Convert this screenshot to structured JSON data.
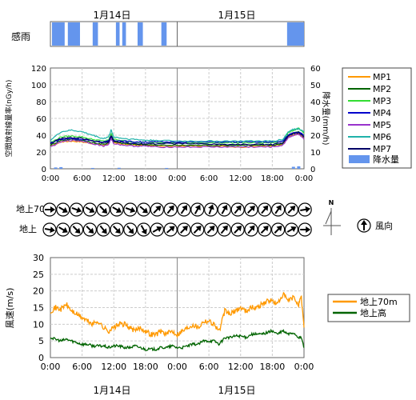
{
  "dates": [
    "1月14日",
    "1月15日"
  ],
  "rain_panel": {
    "label": "感雨"
  },
  "rad_chart": {
    "ylabel": "空間放射線量率(nGy/h)",
    "y2label": "降水量(mm/h)",
    "yticks": [
      "0",
      "20",
      "40",
      "60",
      "80",
      "100",
      "120"
    ],
    "y2ticks": [
      "0",
      "10",
      "20",
      "30",
      "40",
      "50",
      "60"
    ],
    "xticks": [
      "0:00",
      "6:00",
      "12:00",
      "18:00",
      "0:00",
      "6:00",
      "12:00",
      "18:00",
      "0:00"
    ]
  },
  "legend_rad": {
    "items": [
      {
        "name": "MP1",
        "color": "#ff9900"
      },
      {
        "name": "MP2",
        "color": "#006400"
      },
      {
        "name": "MP3",
        "color": "#33dd33"
      },
      {
        "name": "MP4",
        "color": "#0000cc"
      },
      {
        "name": "MP5",
        "color": "#9933cc"
      },
      {
        "name": "MP6",
        "color": "#20b2aa"
      },
      {
        "name": "MP7",
        "color": "#000066"
      }
    ],
    "rain_name": "降水量",
    "rain_color": "#6495ed"
  },
  "wind_dir": {
    "row1_label": "地上70m",
    "row2_label": "地上",
    "compass_letter": "N",
    "legend_label": "風向",
    "row1_angles": [
      90,
      120,
      110,
      120,
      135,
      120,
      110,
      130,
      45,
      40,
      35,
      30,
      20,
      30,
      40,
      45,
      40,
      35,
      45,
      80
    ],
    "row2_angles": [
      100,
      120,
      135,
      135,
      140,
      135,
      140,
      150,
      60,
      50,
      45,
      45,
      45,
      40,
      45,
      40,
      45,
      45,
      60,
      90
    ]
  },
  "wind_chart": {
    "ylabel": "風速(m/s)",
    "yticks": [
      "0",
      "5",
      "10",
      "15",
      "20",
      "25",
      "30"
    ],
    "xticks": [
      "0:00",
      "6:00",
      "12:00",
      "18:00",
      "0:00",
      "6:00",
      "12:00",
      "18:00",
      "0:00"
    ],
    "legend": [
      {
        "name": "地上70m",
        "color": "#ff9900"
      },
      {
        "name": "地上高",
        "color": "#006400"
      }
    ]
  },
  "chart_data": [
    {
      "type": "bar",
      "title": "感雨",
      "x_unit": "hour",
      "rain_sensed_intervals_hours": [
        [
          0.3,
          2.7
        ],
        [
          3.3,
          5.6
        ],
        [
          8.0,
          9.0
        ],
        [
          12.4,
          13.1
        ],
        [
          13.6,
          14.3
        ],
        [
          16.5,
          17.5
        ],
        [
          21.0,
          22.0
        ],
        [
          44.8,
          48.0
        ]
      ]
    },
    {
      "type": "line",
      "xlim": [
        0,
        48
      ],
      "ylim": [
        0,
        120
      ],
      "y2lim": [
        0,
        60
      ],
      "grid": true,
      "legend": "right",
      "series": [
        {
          "name": "MP1",
          "x": [
            0,
            2,
            4,
            6,
            8,
            10,
            11,
            11.5,
            12,
            14,
            16,
            18,
            20,
            24,
            28,
            32,
            36,
            40,
            42,
            44,
            45,
            46,
            47,
            48
          ],
          "y": [
            27,
            32,
            33,
            32,
            30,
            28,
            30,
            37,
            31,
            29,
            28,
            28,
            27,
            27,
            27,
            27,
            26,
            27,
            27,
            29,
            38,
            40,
            42,
            36
          ]
        },
        {
          "name": "MP2",
          "x": [
            0,
            2,
            4,
            6,
            8,
            10,
            11,
            11.5,
            12,
            14,
            16,
            18,
            20,
            24,
            28,
            32,
            36,
            40,
            42,
            44,
            45,
            46,
            47,
            48
          ],
          "y": [
            28,
            34,
            35,
            34,
            31,
            29,
            31,
            38,
            32,
            30,
            29,
            29,
            28,
            28,
            28,
            28,
            28,
            28,
            28,
            30,
            40,
            42,
            44,
            38
          ]
        },
        {
          "name": "MP3",
          "x": [
            0,
            2,
            4,
            6,
            8,
            10,
            11,
            11.5,
            12,
            14,
            16,
            18,
            20,
            24,
            28,
            32,
            36,
            40,
            42,
            44,
            45,
            46,
            47,
            48
          ],
          "y": [
            31,
            38,
            39,
            38,
            35,
            33,
            34,
            42,
            35,
            33,
            32,
            32,
            31,
            31,
            31,
            31,
            31,
            31,
            31,
            33,
            43,
            46,
            48,
            42
          ]
        },
        {
          "name": "MP4",
          "x": [
            0,
            2,
            4,
            6,
            8,
            10,
            11,
            11.5,
            12,
            14,
            16,
            18,
            20,
            24,
            28,
            32,
            36,
            40,
            42,
            44,
            45,
            46,
            47,
            48
          ],
          "y": [
            31,
            35,
            36,
            35,
            33,
            32,
            33,
            39,
            34,
            33,
            32,
            32,
            32,
            32,
            32,
            32,
            32,
            32,
            32,
            33,
            40,
            43,
            44,
            40
          ]
        },
        {
          "name": "MP5",
          "x": [
            0,
            2,
            4,
            6,
            8,
            10,
            11,
            11.5,
            12,
            14,
            16,
            18,
            20,
            24,
            28,
            32,
            36,
            40,
            42,
            44,
            45,
            46,
            47,
            48
          ],
          "y": [
            26,
            32,
            34,
            33,
            30,
            27,
            29,
            36,
            30,
            28,
            27,
            27,
            26,
            26,
            26,
            26,
            26,
            26,
            26,
            28,
            37,
            40,
            41,
            35
          ]
        },
        {
          "name": "MP6",
          "x": [
            0,
            2,
            4,
            6,
            8,
            10,
            11,
            11.5,
            12,
            14,
            16,
            18,
            20,
            24,
            28,
            32,
            36,
            40,
            42,
            44,
            45,
            46,
            47,
            48
          ],
          "y": [
            34,
            44,
            46,
            44,
            40,
            36,
            38,
            46,
            38,
            36,
            35,
            34,
            34,
            33,
            33,
            33,
            33,
            33,
            33,
            35,
            44,
            47,
            48,
            44
          ]
        },
        {
          "name": "MP7",
          "x": [
            0,
            2,
            4,
            6,
            8,
            10,
            11,
            11.5,
            12,
            14,
            16,
            18,
            20,
            24,
            28,
            32,
            36,
            40,
            42,
            44,
            45,
            46,
            47,
            48
          ],
          "y": [
            30,
            36,
            37,
            36,
            33,
            31,
            32,
            39,
            33,
            31,
            30,
            30,
            30,
            30,
            30,
            29,
            29,
            29,
            29,
            31,
            39,
            42,
            43,
            38
          ]
        }
      ],
      "rain_bars": {
        "name": "降水量",
        "x": [
          1,
          2,
          8,
          13,
          22,
          46,
          47
        ],
        "y": [
          0.8,
          1.0,
          0.5,
          0.6,
          0.5,
          1.2,
          1.5
        ]
      }
    },
    {
      "type": "line",
      "xlim": [
        0,
        48
      ],
      "ylim": [
        0,
        30
      ],
      "grid": true,
      "legend": "right",
      "series": [
        {
          "name": "地上70m",
          "x": [
            0,
            1,
            2,
            3,
            4,
            5,
            6,
            7,
            8,
            9,
            10,
            11,
            12,
            13,
            14,
            15,
            16,
            17,
            18,
            19,
            20,
            21,
            22,
            23,
            24,
            25,
            26,
            27,
            28,
            29,
            30,
            31,
            32,
            33,
            34,
            35,
            36,
            37,
            38,
            39,
            40,
            41,
            42,
            43,
            44,
            45,
            46,
            47,
            47.5,
            48
          ],
          "y": [
            14,
            15,
            14.5,
            16,
            14,
            13,
            12,
            11,
            10,
            11,
            9,
            8,
            9,
            10,
            10,
            9,
            8,
            9,
            8,
            7,
            7,
            8,
            7,
            8,
            7,
            8,
            9,
            10,
            9,
            11,
            11,
            10,
            8,
            14,
            13,
            14,
            15,
            14,
            15,
            15,
            16,
            17,
            17,
            16,
            19,
            17,
            18,
            16,
            18,
            9
          ]
        },
        {
          "name": "地上高",
          "x": [
            0,
            1,
            2,
            3,
            4,
            5,
            6,
            7,
            8,
            9,
            10,
            11,
            12,
            13,
            14,
            15,
            16,
            17,
            18,
            19,
            20,
            21,
            22,
            23,
            24,
            25,
            26,
            27,
            28,
            29,
            30,
            31,
            32,
            33,
            34,
            35,
            36,
            37,
            38,
            39,
            40,
            41,
            42,
            43,
            44,
            45,
            46,
            47,
            47.5,
            48
          ],
          "y": [
            6,
            5.5,
            5,
            5.5,
            5,
            4.5,
            4,
            4,
            3.5,
            3.5,
            3.5,
            3,
            3.5,
            3.5,
            3,
            3,
            3.5,
            3,
            2.5,
            2.5,
            2.5,
            3,
            3,
            3.5,
            3,
            3,
            3.5,
            4,
            4,
            5,
            5,
            5,
            4,
            6,
            6,
            6.5,
            6.5,
            6,
            7,
            7,
            7,
            7.5,
            8,
            7,
            8,
            7,
            7.5,
            6,
            6,
            3
          ]
        }
      ]
    }
  ]
}
